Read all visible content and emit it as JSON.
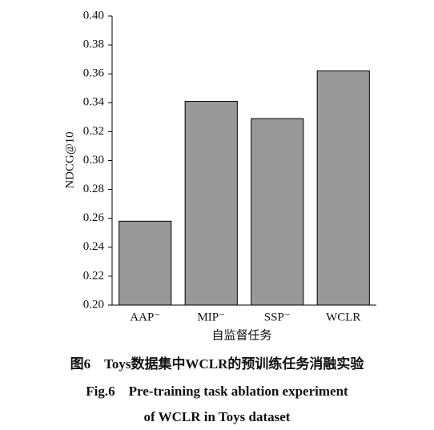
{
  "chart_data": {
    "type": "bar",
    "categories": [
      "AAP⁻",
      "MIP⁻",
      "SSP⁻",
      "WCLR"
    ],
    "values": [
      0.258,
      0.341,
      0.329,
      0.362
    ],
    "color": "#999999",
    "xlabel": "自监督任务",
    "ylabel": "NDCG@10",
    "ylim": [
      0.2,
      0.4
    ],
    "yticks": [
      {
        "value": 0.2,
        "label": "0.20"
      },
      0.22,
      0.24,
      0.26,
      0.28,
      {
        "value": 0.3,
        "label": "0.30"
      },
      0.32,
      0.34,
      0.36,
      0.38,
      {
        "value": 0.4,
        "label": "0.40"
      }
    ],
    "caption": [
      "图6　Toys数据集中WCLR的预训练任务消融实验",
      "Fig.6　Pre-training task ablation experiment",
      "of WCLR in Toys dataset"
    ]
  }
}
